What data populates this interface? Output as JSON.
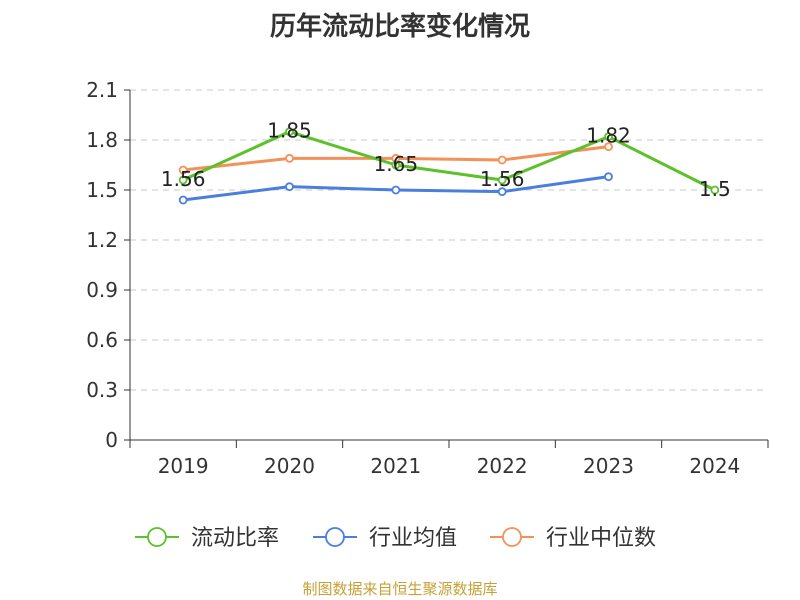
{
  "chart_data": {
    "type": "line",
    "title": "历年流动比率变化情况",
    "categories": [
      "2019",
      "2020",
      "2021",
      "2022",
      "2023",
      "2024"
    ],
    "ylim": [
      0,
      2.1
    ],
    "yticks": [
      "0",
      "0.3",
      "0.6",
      "0.9",
      "1.2",
      "1.5",
      "1.8",
      "2.1"
    ],
    "grid": true,
    "legend_position": "bottom",
    "series": [
      {
        "name": "流动比率",
        "color": "#5cc12a",
        "values": [
          1.56,
          1.85,
          1.65,
          1.56,
          1.82,
          1.5
        ],
        "labels": [
          "1.56",
          "1.85",
          "1.65",
          "1.56",
          "1.82",
          "1.5"
        ]
      },
      {
        "name": "行业均值",
        "color": "#4a7fdd",
        "values": [
          1.44,
          1.52,
          1.5,
          1.49,
          1.58,
          null
        ]
      },
      {
        "name": "行业中位数",
        "color": "#f4905a",
        "values": [
          1.62,
          1.69,
          1.69,
          1.68,
          1.76,
          null
        ]
      }
    ]
  },
  "footer": "制图数据来自恒生聚源数据库"
}
